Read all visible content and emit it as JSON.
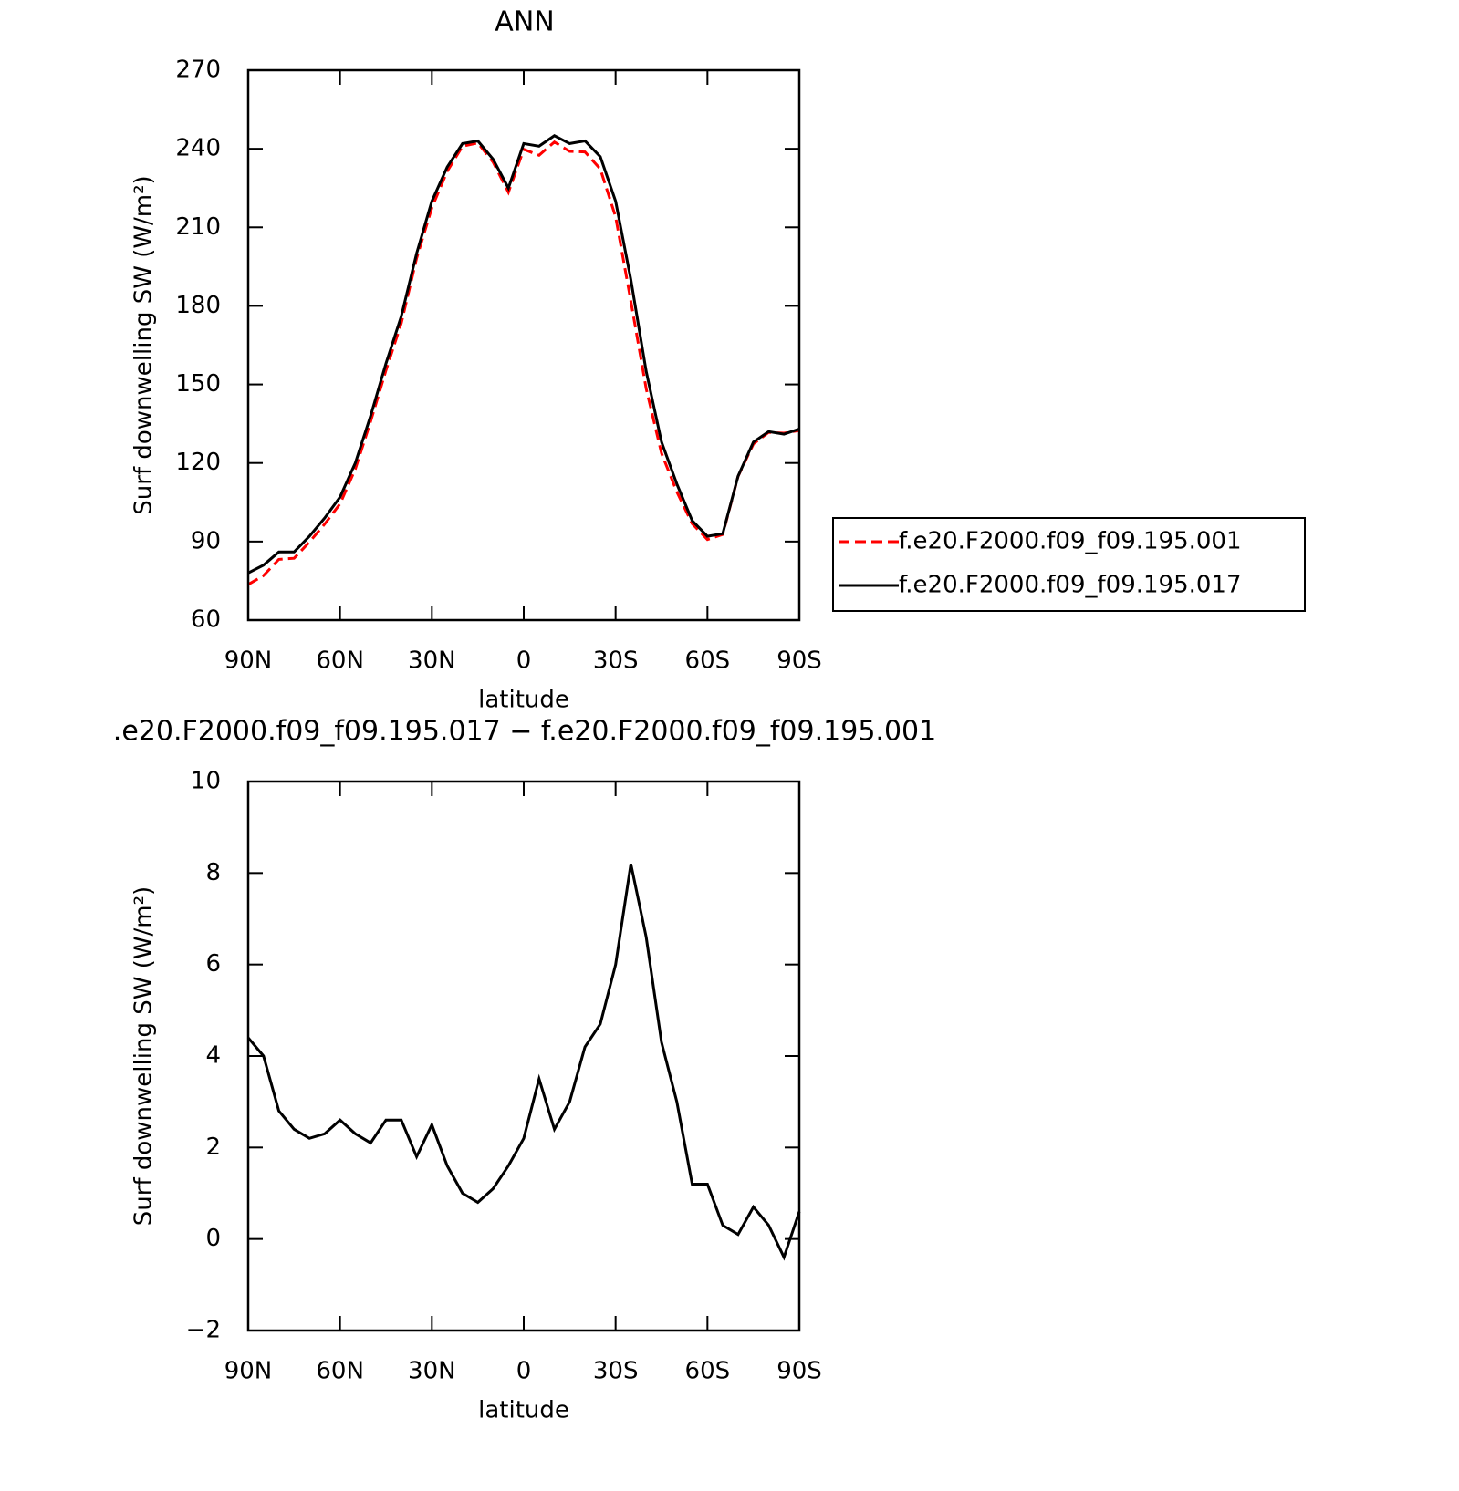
{
  "chart_data": [
    {
      "type": "line",
      "title": "ANN",
      "xlabel": "latitude",
      "ylabel": "Surf downwelling SW (W/m²)",
      "x": [
        90,
        85,
        80,
        75,
        70,
        65,
        60,
        55,
        50,
        45,
        40,
        35,
        30,
        25,
        20,
        15,
        10,
        5,
        0,
        -5,
        -10,
        -15,
        -20,
        -25,
        -30,
        -35,
        -40,
        -45,
        -50,
        -55,
        -60,
        -65,
        -70,
        -75,
        -80,
        -85,
        -90
      ],
      "series": [
        {
          "name": "f.e20.F2000.f09_f09.195.001",
          "color": "#ff0000",
          "linestyle": "dashed",
          "values": [
            73.6,
            77,
            83.2,
            83.6,
            89.8,
            96.7,
            104.4,
            117.7,
            135.9,
            155.4,
            173.4,
            198.2,
            217.5,
            231.4,
            241,
            242.2,
            234.9,
            223.4,
            239.8,
            237.5,
            242.6,
            239,
            238.8,
            232.3,
            214,
            181.8,
            148.4,
            123.7,
            109,
            96.8,
            90.8,
            92.7,
            114.9,
            127.3,
            131.7,
            131.4,
            132.4
          ]
        },
        {
          "name": "f.e20.F2000.f09_f09.195.017",
          "color": "#000000",
          "linestyle": "solid",
          "values": [
            78,
            81,
            86,
            86,
            92,
            99,
            107,
            120,
            138,
            158,
            176,
            200,
            220,
            233,
            242,
            243,
            236,
            225,
            242,
            241,
            245,
            242,
            243,
            237,
            220,
            190,
            155,
            128,
            112,
            98,
            92,
            93,
            115,
            128,
            132,
            131,
            133
          ]
        }
      ],
      "xlim": [
        90,
        -90
      ],
      "xticks": [
        {
          "value": 90,
          "label": "90N"
        },
        {
          "value": 60,
          "label": "60N"
        },
        {
          "value": 30,
          "label": "30N"
        },
        0,
        {
          "value": -30,
          "label": "30S"
        },
        {
          "value": -60,
          "label": "60S"
        },
        {
          "value": -90,
          "label": "90S"
        }
      ],
      "ylim": [
        60,
        270
      ],
      "yticks": [
        60,
        90,
        120,
        150,
        180,
        210,
        240,
        270
      ],
      "legend": "outside-right"
    },
    {
      "type": "line",
      "title": ".e20.F2000.f09_f09.195.017 − f.e20.F2000.f09_f09.195.001",
      "xlabel": "latitude",
      "ylabel": "Surf downwelling SW (W/m²)",
      "x": [
        90,
        85,
        80,
        75,
        70,
        65,
        60,
        55,
        50,
        45,
        40,
        35,
        30,
        25,
        20,
        15,
        10,
        5,
        0,
        -5,
        -10,
        -15,
        -20,
        -25,
        -30,
        -35,
        -40,
        -45,
        -50,
        -55,
        -60,
        -65,
        -70,
        -75,
        -80,
        -85,
        -90
      ],
      "series": [
        {
          "color": "#000000",
          "linestyle": "solid",
          "values": [
            4.4,
            4.0,
            2.8,
            2.4,
            2.2,
            2.3,
            2.6,
            2.3,
            2.1,
            2.6,
            2.6,
            1.8,
            2.5,
            1.6,
            1.0,
            0.8,
            1.1,
            1.6,
            2.2,
            3.5,
            2.4,
            3.0,
            4.2,
            4.7,
            6.0,
            8.2,
            6.6,
            4.3,
            3.0,
            1.2,
            1.2,
            0.3,
            0.1,
            0.7,
            0.3,
            -0.4,
            0.6
          ]
        }
      ],
      "xlim": [
        90,
        -90
      ],
      "xticks": [
        {
          "value": 90,
          "label": "90N"
        },
        {
          "value": 60,
          "label": "60N"
        },
        {
          "value": 30,
          "label": "30N"
        },
        0,
        {
          "value": -30,
          "label": "30S"
        },
        {
          "value": -60,
          "label": "60S"
        },
        {
          "value": -90,
          "label": "90S"
        }
      ],
      "ylim": [
        -2,
        10
      ],
      "yticks": [
        {
          "value": -2,
          "label": "−2"
        },
        0,
        2,
        4,
        6,
        8,
        10
      ]
    }
  ]
}
